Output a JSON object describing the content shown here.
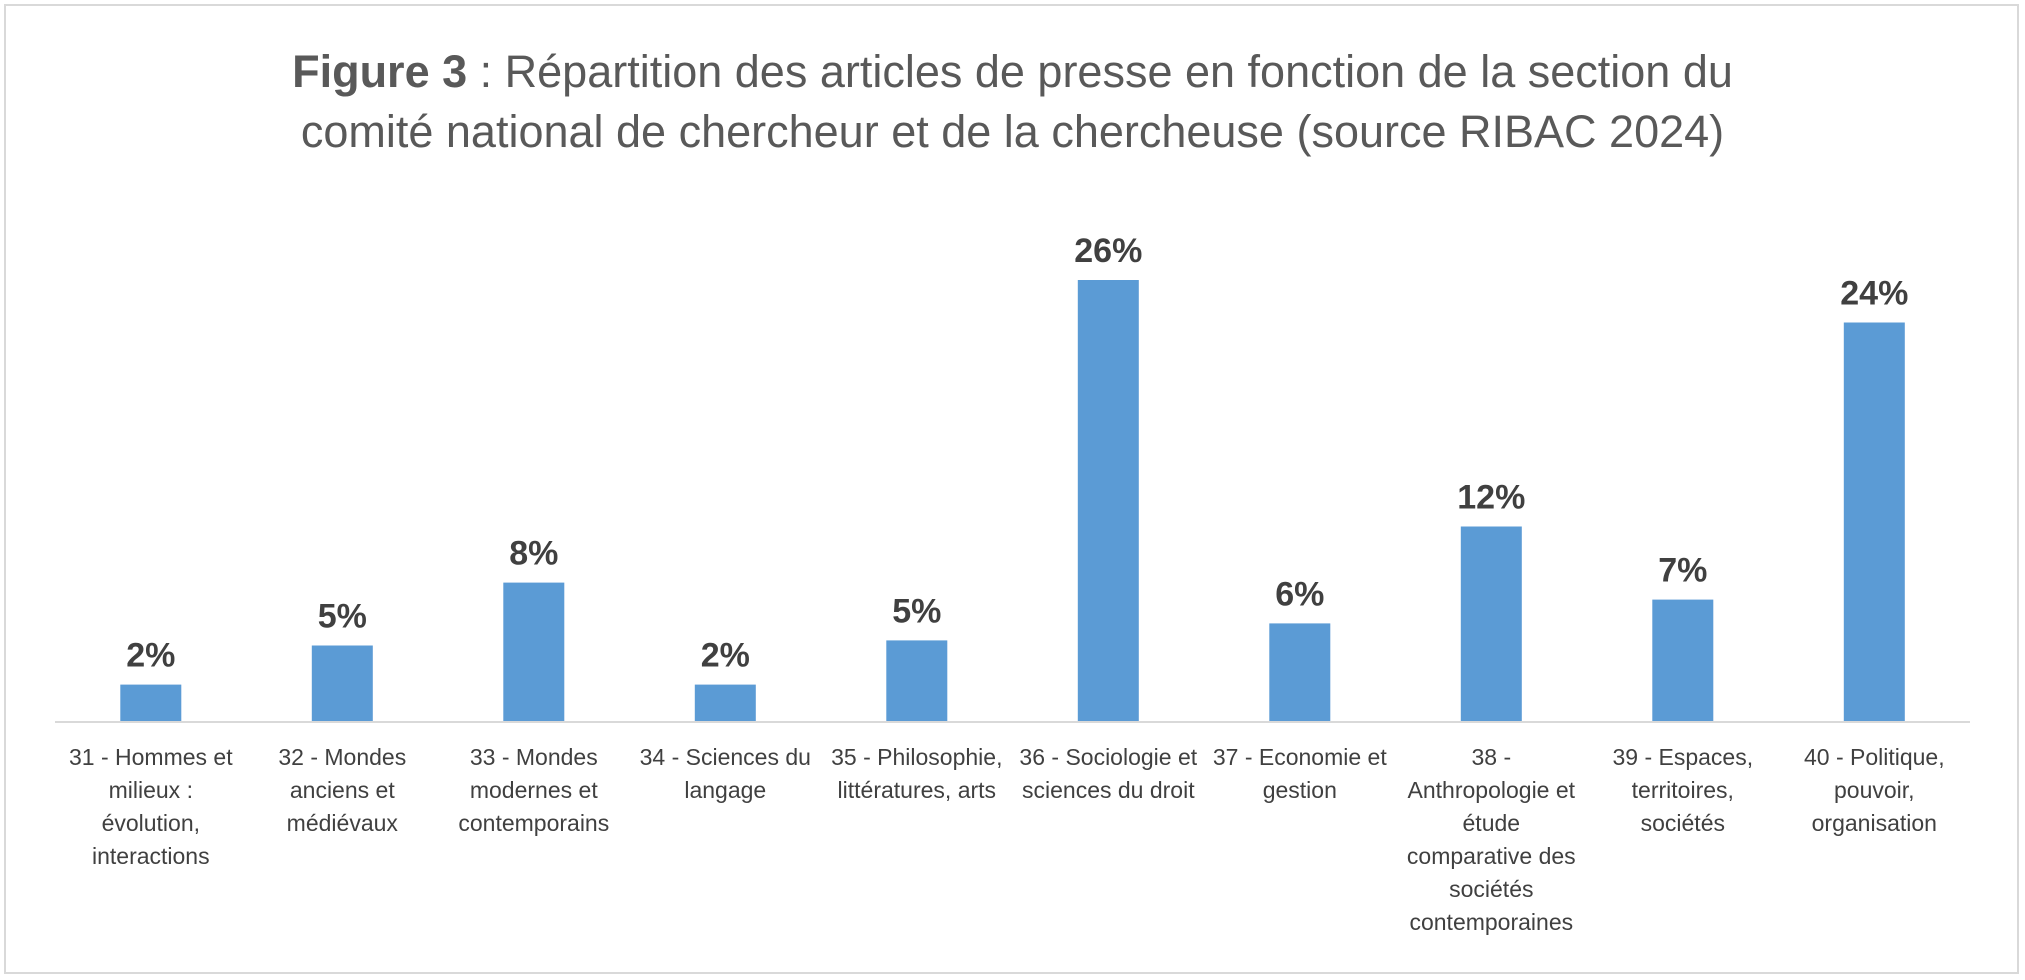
{
  "chart_data": {
    "type": "bar",
    "title_bold": "Figure 3",
    "title_line1_rest": " : Répartition des articles de presse en fonction de la section du",
    "title_line2": "comité national de chercheur et de la chercheuse (source RIBAC 2024)",
    "categories": [
      [
        "31 - Hommes et",
        "milieux :",
        "évolution,",
        "interactions"
      ],
      [
        "32 - Mondes",
        "anciens et",
        "médiévaux"
      ],
      [
        "33 - Mondes",
        "modernes et",
        "contemporains"
      ],
      [
        "34 - Sciences du",
        "langage"
      ],
      [
        "35 - Philosophie,",
        "littératures, arts"
      ],
      [
        "36 - Sociologie et",
        "sciences du droit"
      ],
      [
        "37 - Economie et",
        "gestion"
      ],
      [
        "38 -",
        "Anthropologie et",
        "étude",
        "comparative des",
        "sociétés",
        "contemporaines"
      ],
      [
        "39 - Espaces,",
        "territoires,",
        "sociétés"
      ],
      [
        "40 - Politique,",
        "pouvoir,",
        "organisation"
      ]
    ],
    "values": [
      2.2,
      4.5,
      8.2,
      2.2,
      4.8,
      26.0,
      5.8,
      11.5,
      7.2,
      23.5
    ],
    "data_labels": [
      "2%",
      "5%",
      "8%",
      "2%",
      "5%",
      "26%",
      "6%",
      "12%",
      "7%",
      "24%"
    ],
    "ylim": [
      0,
      26
    ],
    "xlabel": "",
    "ylabel": "",
    "grid": false,
    "bar_color": "#5b9bd5"
  }
}
